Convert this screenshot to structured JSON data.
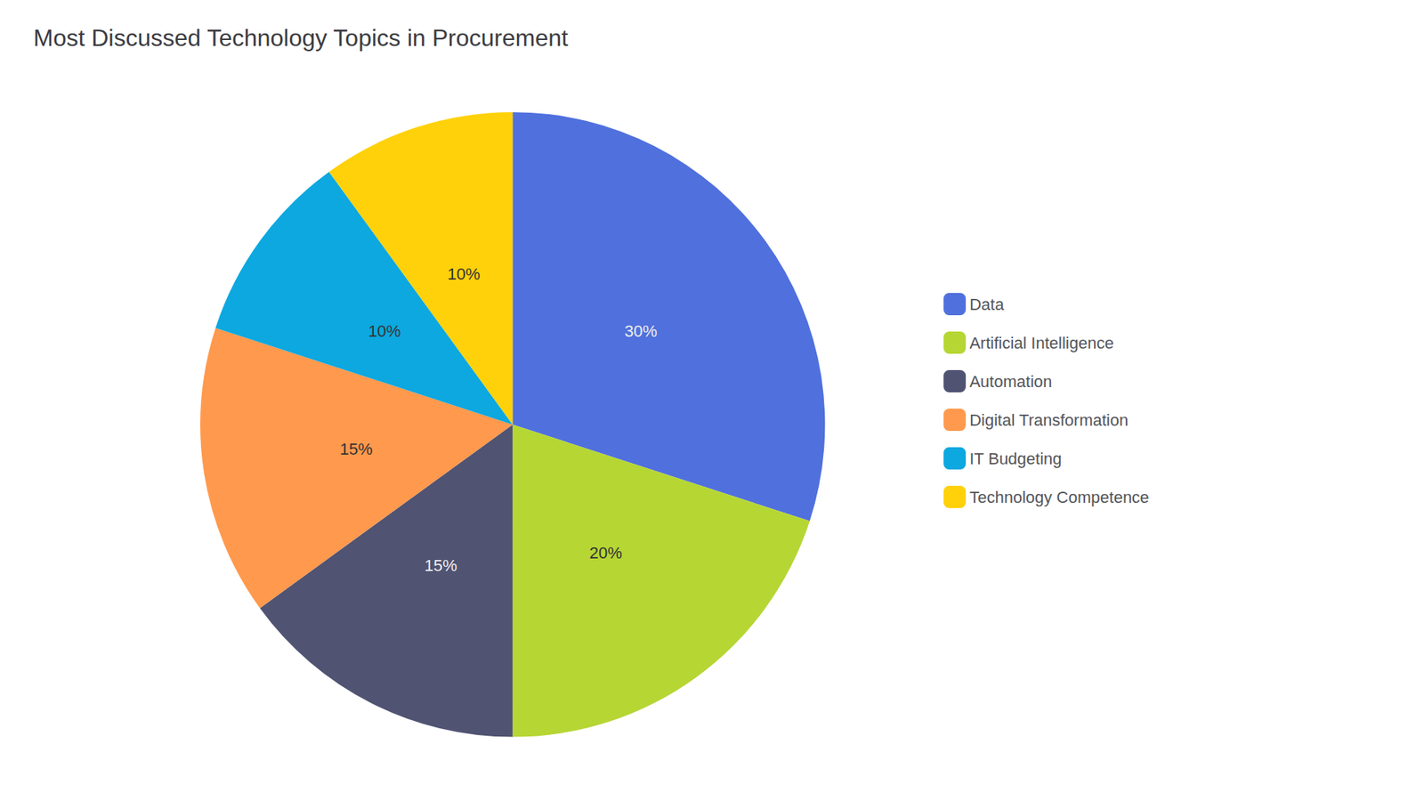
{
  "chart_data": {
    "type": "pie",
    "title": "Most Discussed Technology Topics in Procurement",
    "categories": [
      "Data",
      "Artificial Intelligence",
      "Automation",
      "Digital Transformation",
      "IT Budgeting",
      "Technology Competence"
    ],
    "values": [
      30,
      20,
      15,
      15,
      10,
      10
    ],
    "value_labels": [
      "30%",
      "20%",
      "15%",
      "15%",
      "10%",
      "10%"
    ],
    "data_labels": true,
    "legend": "right"
  }
}
